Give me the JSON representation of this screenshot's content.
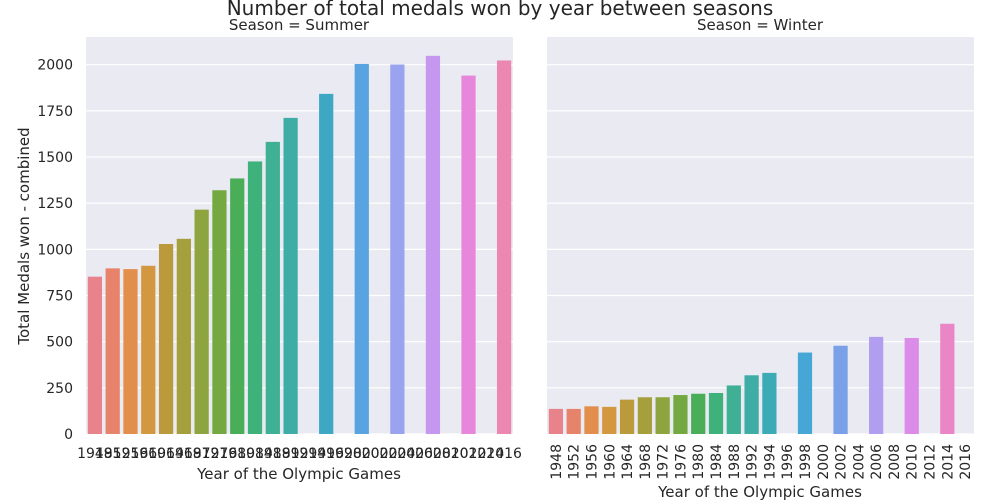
{
  "figure": {
    "title": "Number of total medals won by year between seasons"
  },
  "chart_data": [
    {
      "type": "bar",
      "title": "Season = Summer",
      "xlabel": "Year of the Olympic Games",
      "ylabel": "Total Medals won - combined",
      "ylim": [
        0,
        2150
      ],
      "yticks": [
        0,
        250,
        500,
        750,
        1000,
        1250,
        1500,
        1750,
        2000
      ],
      "grid": true,
      "categories": [
        "1948",
        "1952",
        "1956",
        "1960",
        "1964",
        "1968",
        "1972",
        "1976",
        "1980",
        "1984",
        "1988",
        "1992",
        "1994",
        "1996",
        "1998",
        "2000",
        "2002",
        "2004",
        "2006",
        "2008",
        "2010",
        "2012",
        "2014",
        "2016"
      ],
      "values": [
        852,
        897,
        893,
        911,
        1029,
        1057,
        1215,
        1320,
        1384,
        1476,
        1582,
        1712,
        null,
        1842,
        null,
        2004,
        null,
        2001,
        null,
        2048,
        null,
        1941,
        null,
        2023
      ],
      "colors": [
        "#e8838c",
        "#e8836b",
        "#e28f4e",
        "#d3983f",
        "#bb9a3b",
        "#a59f3d",
        "#8ea43e",
        "#74a840",
        "#4aae58",
        "#3fb17a",
        "#3fb093",
        "#3dada6",
        "#3dabb5",
        "#3ea8c4",
        "#46a6d6",
        "#58a3e0",
        "#7aa1e8",
        "#9aa3ef",
        "#b19ef0",
        "#c697ee",
        "#db8ce9",
        "#e787dc",
        "#eb86c6",
        "#ec87b2"
      ],
      "xtick_rotation": 0
    },
    {
      "type": "bar",
      "title": "Season = Winter",
      "xlabel": "Year of the Olympic Games",
      "ylabel": "",
      "ylim": [
        0,
        2150
      ],
      "grid": true,
      "categories": [
        "1948",
        "1952",
        "1956",
        "1960",
        "1964",
        "1968",
        "1972",
        "1976",
        "1980",
        "1984",
        "1988",
        "1992",
        "1994",
        "1996",
        "1998",
        "2000",
        "2002",
        "2004",
        "2006",
        "2008",
        "2010",
        "2012",
        "2014",
        "2016"
      ],
      "values": [
        136,
        136,
        150,
        147,
        186,
        199,
        199,
        211,
        218,
        222,
        263,
        318,
        331,
        null,
        441,
        null,
        478,
        null,
        526,
        null,
        520,
        null,
        597,
        null
      ],
      "colors": [
        "#e8838c",
        "#e8836b",
        "#e28f4e",
        "#d3983f",
        "#bb9a3b",
        "#a59f3d",
        "#8ea43e",
        "#74a840",
        "#4aae58",
        "#3fb17a",
        "#3fb093",
        "#3dada6",
        "#3dabb5",
        "#3ea8c4",
        "#46a6d6",
        "#58a3e0",
        "#7aa1e8",
        "#9aa3ef",
        "#b19ef0",
        "#c697ee",
        "#db8ce9",
        "#e787dc",
        "#eb86c6",
        "#ec87b2"
      ],
      "xtick_rotation": -90
    }
  ],
  "style": {
    "panel_bg": "#eaeaf2",
    "grid_color": "#ffffff",
    "text_color": "#262626"
  }
}
